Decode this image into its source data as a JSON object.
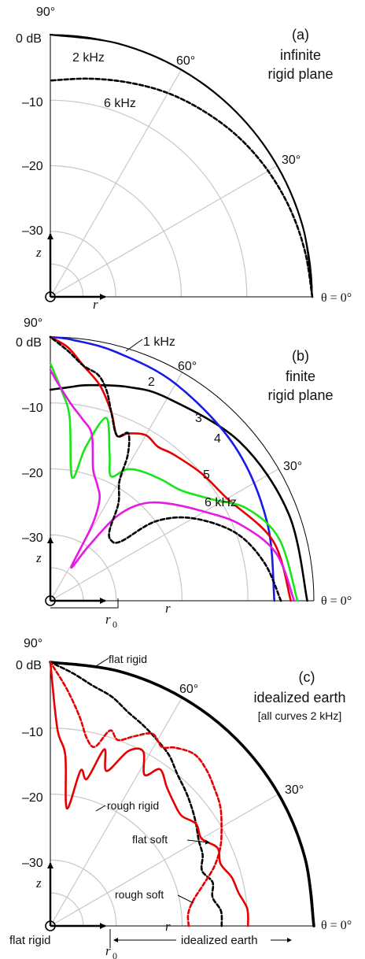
{
  "colors": {
    "grid": "#c8c8c8",
    "black": "#000000",
    "blue": "#1a1ae6",
    "red": "#e60000",
    "green": "#19e619",
    "magenta": "#e619e6"
  },
  "chart_data": [
    {
      "type": "polar-line",
      "panel": "(a)",
      "title_lines": [
        "infinite",
        "rigid plane"
      ],
      "angle_labels": [
        "90°",
        "60°",
        "30°",
        "θ = 0°"
      ],
      "radial_labels": [
        "0 dB",
        "–10",
        "–20",
        "–30"
      ],
      "radial_ticks_db": [
        0,
        -10,
        -20,
        -30
      ],
      "axis_labels": {
        "z": "z",
        "r": "r"
      },
      "series": [
        {
          "name": "2 kHz",
          "style": "solid",
          "color": "black",
          "theta_deg": [
            0,
            15,
            30,
            45,
            60,
            75,
            90
          ],
          "db": [
            0,
            0,
            0,
            0,
            0,
            0,
            0
          ]
        },
        {
          "name": "6 kHz",
          "style": "dashed",
          "color": "black",
          "theta_deg": [
            0,
            10,
            20,
            30,
            40,
            50,
            60,
            70,
            80,
            90
          ],
          "db": [
            0,
            -0.5,
            -1,
            -1.6,
            -2.3,
            -3.2,
            -4.1,
            -5.2,
            -6.2,
            -7
          ]
        }
      ],
      "annotations": [
        "2 kHz",
        "6 kHz"
      ]
    },
    {
      "type": "polar-line",
      "panel": "(b)",
      "title_lines": [
        "finite",
        "rigid plane"
      ],
      "angle_labels": [
        "90°",
        "60°",
        "30°",
        "θ = 0°"
      ],
      "radial_labels": [
        "0 dB",
        "–10",
        "–20",
        "–30"
      ],
      "radial_ticks_db": [
        0,
        -10,
        -20,
        -30
      ],
      "axis_labels": {
        "z": "z",
        "r": "r",
        "r0": "r"
      },
      "r0_subscript": "0",
      "series": [
        {
          "name": "1 kHz",
          "style": "solid",
          "color": "black",
          "theta_deg": [
            0,
            20,
            40,
            60,
            70,
            80,
            85,
            90
          ],
          "db": [
            -1,
            -1.5,
            -2.5,
            -4.5,
            -5.5,
            -6.8,
            -7.5,
            -8
          ]
        },
        {
          "name": "2",
          "style": "solid",
          "color": "blue",
          "theta_deg": [
            0,
            20,
            40,
            60,
            75,
            85,
            90
          ],
          "db": [
            -6,
            -5,
            -3.5,
            -2,
            -1,
            -0.3,
            0
          ]
        },
        {
          "name": "3",
          "style": "solid",
          "color": "red",
          "theta_deg": [
            0,
            15,
            30,
            40,
            50,
            55,
            60,
            65,
            68,
            72,
            77,
            82,
            86,
            90
          ],
          "db": [
            -3.5,
            -5,
            -9,
            -10,
            -11,
            -11.5,
            -11,
            -12,
            -13,
            -10,
            -6.5,
            -4,
            -1.5,
            0
          ]
        },
        {
          "name": "4",
          "style": "solid",
          "color": "green",
          "theta_deg": [
            0,
            15,
            25,
            32,
            40,
            47,
            55,
            60,
            64,
            68,
            73,
            77,
            80,
            84,
            87,
            90
          ],
          "db": [
            -2.5,
            -4,
            -7,
            -11,
            -14,
            -15,
            -16,
            -17,
            -19,
            -16,
            -11,
            -16,
            -21,
            -12,
            -8,
            -4
          ]
        },
        {
          "name": "5",
          "style": "solid",
          "color": "magenta",
          "theta_deg": [
            0,
            12,
            22,
            30,
            40,
            47,
            52,
            55,
            58,
            61,
            64,
            68,
            72,
            76,
            80,
            84,
            88,
            90
          ],
          "db": [
            -3,
            -5,
            -9,
            -13,
            -17,
            -20,
            -24,
            -30,
            -34,
            -27,
            -23,
            -21,
            -19,
            -14,
            -12,
            -10,
            -7,
            -5
          ]
        },
        {
          "name": "6 kHz",
          "style": "dashed",
          "color": "black",
          "theta_deg": [
            0,
            10,
            20,
            30,
            37,
            40,
            45,
            50,
            55,
            60,
            62,
            65,
            68,
            72,
            75,
            78,
            82,
            86,
            90
          ],
          "db": [
            -5,
            -7,
            -10,
            -15,
            -20,
            -26,
            -27,
            -26,
            -22,
            -19,
            -15,
            -12,
            -13,
            -10,
            -7,
            -5,
            -4,
            -2,
            0
          ]
        }
      ],
      "annotations": [
        "1 kHz",
        "2",
        "3",
        "4",
        "5",
        "6 kHz"
      ]
    },
    {
      "type": "polar-line",
      "panel": "(c)",
      "title_lines": [
        "idealized earth",
        "[all curves 2 kHz]"
      ],
      "angle_labels": [
        "90°",
        "60°",
        "30°",
        "θ = 0°"
      ],
      "radial_labels": [
        "0 dB",
        "–10",
        "–20",
        "–30"
      ],
      "radial_ticks_db": [
        0,
        -10,
        -20,
        -30
      ],
      "axis_labels": {
        "z": "z",
        "r": "r",
        "r0": "r"
      },
      "r0_subscript": "0",
      "bottom_labels": [
        "flat rigid",
        "idealized earth"
      ],
      "series": [
        {
          "name": "flat rigid",
          "style": "solid-thick",
          "color": "black",
          "theta_deg": [
            0,
            15,
            30,
            45,
            60,
            75,
            90
          ],
          "db": [
            0,
            0,
            0,
            0,
            0,
            0,
            0
          ]
        },
        {
          "name": "flat soft",
          "style": "dashed",
          "color": "black",
          "theta_deg": [
            0,
            5,
            10,
            15,
            20,
            25,
            30,
            35,
            40,
            45,
            50,
            55,
            60,
            65,
            70,
            75,
            80,
            85,
            90
          ],
          "db": [
            -14,
            -14,
            -15,
            -14.5,
            -15.5,
            -14.5,
            -14,
            -13,
            -12,
            -11,
            -10,
            -8.5,
            -7.5,
            -6.5,
            -5.5,
            -4,
            -3,
            -1.5,
            0
          ]
        },
        {
          "name": "rough rigid",
          "style": "solid",
          "color": "red",
          "theta_deg": [
            0,
            5,
            10,
            15,
            20,
            25,
            30,
            35,
            40,
            45,
            50,
            55,
            58,
            62,
            66,
            70,
            73,
            76,
            79,
            82,
            85,
            88,
            90
          ],
          "db": [
            -10,
            -10,
            -11,
            -11.5,
            -12.5,
            -12,
            -13.5,
            -13,
            -14,
            -13.5,
            -12.5,
            -11,
            -13,
            -10,
            -11,
            -15,
            -12,
            -17,
            -16,
            -22,
            -14,
            -10,
            0
          ]
        },
        {
          "name": "rough soft",
          "style": "dashed",
          "color": "red",
          "theta_deg": [
            0,
            5,
            10,
            15,
            20,
            25,
            30,
            35,
            40,
            45,
            50,
            55,
            58,
            62,
            66,
            70,
            73,
            76,
            79,
            82,
            86,
            90
          ],
          "db": [
            -19,
            -19,
            -18,
            -16,
            -13.5,
            -11.5,
            -10,
            -8.5,
            -7.5,
            -6.5,
            -6,
            -7,
            -8,
            -7,
            -8.5,
            -10,
            -9,
            -12,
            -11,
            -8,
            -4,
            0
          ]
        }
      ],
      "annotations": [
        "flat rigid",
        "rough rigid",
        "flat soft",
        "rough soft"
      ]
    }
  ]
}
